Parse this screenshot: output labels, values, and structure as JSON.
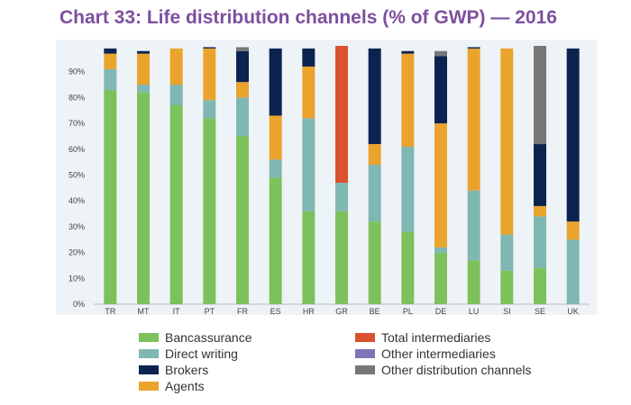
{
  "chart_data": {
    "type": "bar",
    "stacked": true,
    "title": "Chart 33: Life distribution channels (% of GWP) — 2016",
    "xlabel": "",
    "ylabel": "",
    "ylim": [
      0,
      100
    ],
    "yticks": [
      "0%",
      "10%",
      "20%",
      "30%",
      "40%",
      "50%",
      "60%",
      "70%",
      "80%",
      "90%"
    ],
    "categories": [
      "TR",
      "MT",
      "IT",
      "PT",
      "FR",
      "ES",
      "HR",
      "GR",
      "BE",
      "PL",
      "DE",
      "LU",
      "SI",
      "SE",
      "UK"
    ],
    "series": [
      {
        "name": "Bancassurance",
        "color": "#7dc15d",
        "values": [
          83,
          82,
          77,
          72,
          65,
          49,
          36,
          36,
          32,
          28,
          20,
          17,
          13,
          14,
          0
        ]
      },
      {
        "name": "Direct writing",
        "color": "#7fb7b2",
        "values": [
          8,
          3,
          8,
          7,
          15,
          7,
          36,
          11,
          22,
          33,
          2,
          27,
          14,
          20,
          25
        ]
      },
      {
        "name": "Agents",
        "color": "#eaa42c",
        "values": [
          6,
          12,
          14,
          20,
          6,
          17,
          20,
          0,
          8,
          36,
          48,
          55,
          72,
          4,
          7
        ]
      },
      {
        "name": "Brokers",
        "color": "#0c2350",
        "values": [
          2,
          1,
          0,
          0.5,
          12,
          26,
          7,
          0,
          37,
          1,
          26,
          0.5,
          0,
          24,
          67
        ]
      },
      {
        "name": "Total intermediaries",
        "color": "#dc5130",
        "values": [
          0,
          0,
          0,
          0,
          0,
          0,
          0,
          53,
          0,
          0,
          0,
          0,
          0,
          0,
          0
        ]
      },
      {
        "name": "Other intermediaries",
        "color": "#7d75b8",
        "values": [
          0,
          0,
          0,
          0,
          0,
          0,
          0,
          0,
          0,
          0,
          0,
          0,
          0,
          0,
          0
        ]
      },
      {
        "name": "Other distribution channels",
        "color": "#777777",
        "values": [
          0,
          0,
          0,
          0,
          1.5,
          0,
          0,
          0,
          0,
          0,
          2,
          0,
          0,
          38,
          0
        ]
      }
    ],
    "legend_placement": "bottom"
  }
}
